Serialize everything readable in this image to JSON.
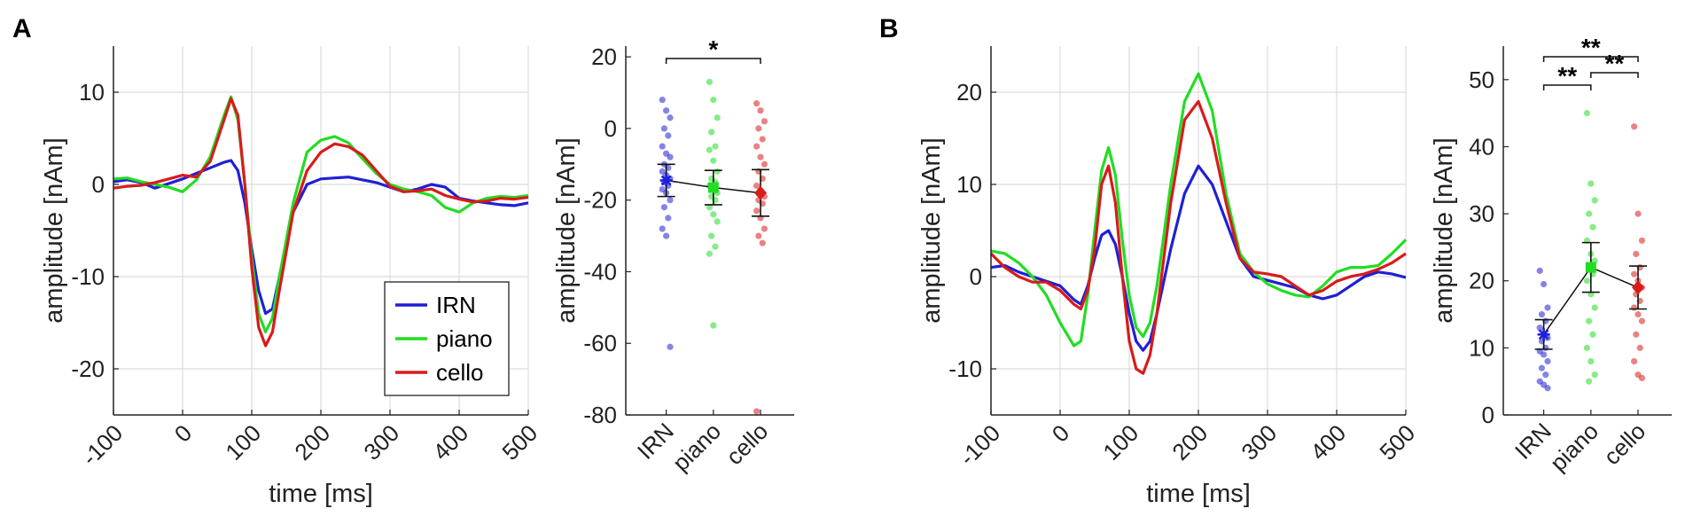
{
  "panels": [
    "A",
    "B"
  ],
  "colors": {
    "IRN": "#1f1fd6",
    "piano": "#22dd22",
    "cello": "#d81b1b"
  },
  "chart_data": [
    {
      "id": "A_wave",
      "type": "line",
      "panel": "A",
      "xlabel": "time [ms]",
      "ylabel": "amplitude [nAm]",
      "xlim": [
        -100,
        500
      ],
      "ylim": [
        -25,
        15
      ],
      "xticks": [
        "-100",
        "0",
        "100",
        "200",
        "300",
        "400",
        "500"
      ],
      "xtick_values": [
        -100,
        0,
        100,
        200,
        300,
        400,
        500
      ],
      "yticks": [
        "10",
        "0",
        "-10",
        "-20"
      ],
      "ytick_values": [
        10,
        0,
        -10,
        -20
      ],
      "legend": [
        "IRN",
        "piano",
        "cello"
      ],
      "legend_position": "bottom-right",
      "series": [
        {
          "name": "IRN",
          "x": [
            -100,
            -80,
            -60,
            -40,
            -20,
            0,
            20,
            40,
            60,
            70,
            80,
            90,
            100,
            110,
            120,
            130,
            140,
            160,
            180,
            200,
            220,
            240,
            260,
            280,
            300,
            320,
            340,
            360,
            380,
            400,
            420,
            440,
            460,
            480,
            500
          ],
          "y": [
            0.3,
            0.5,
            0.2,
            -0.4,
            0.1,
            0.6,
            1.2,
            1.8,
            2.4,
            2.6,
            1.5,
            -2.0,
            -7.0,
            -11.5,
            -14.0,
            -13.5,
            -10.0,
            -3.0,
            0.0,
            0.6,
            0.7,
            0.8,
            0.5,
            0.2,
            -0.3,
            -0.8,
            -0.5,
            0.0,
            -0.3,
            -1.5,
            -1.8,
            -2.0,
            -2.2,
            -2.3,
            -2.0
          ]
        },
        {
          "name": "piano",
          "x": [
            -100,
            -80,
            -60,
            -40,
            -20,
            0,
            20,
            40,
            60,
            70,
            80,
            90,
            100,
            110,
            120,
            130,
            140,
            160,
            180,
            200,
            220,
            240,
            260,
            280,
            300,
            320,
            340,
            360,
            380,
            400,
            420,
            440,
            460,
            480,
            500
          ],
          "y": [
            0.6,
            0.7,
            0.3,
            0.0,
            -0.3,
            -0.8,
            0.5,
            3.0,
            7.5,
            9.5,
            7.0,
            0.0,
            -8.0,
            -14.0,
            -16.0,
            -14.5,
            -10.0,
            -2.0,
            3.5,
            4.8,
            5.2,
            4.5,
            2.8,
            1.2,
            0.0,
            -0.5,
            -0.8,
            -1.2,
            -2.5,
            -3.0,
            -2.0,
            -1.5,
            -1.3,
            -1.4,
            -1.2
          ]
        },
        {
          "name": "cello",
          "x": [
            -100,
            -80,
            -60,
            -40,
            -20,
            0,
            20,
            40,
            60,
            70,
            80,
            90,
            100,
            110,
            120,
            130,
            140,
            160,
            180,
            200,
            220,
            240,
            260,
            280,
            300,
            320,
            340,
            360,
            380,
            400,
            420,
            440,
            460,
            480,
            500
          ],
          "y": [
            -0.4,
            -0.2,
            -0.1,
            0.2,
            0.6,
            1.0,
            0.8,
            2.5,
            7.0,
            9.3,
            7.5,
            0.0,
            -9.0,
            -15.5,
            -17.5,
            -16.0,
            -11.5,
            -3.0,
            1.5,
            3.5,
            4.4,
            4.1,
            3.2,
            1.5,
            -0.2,
            -0.8,
            -0.7,
            -0.5,
            -1.2,
            -1.6,
            -1.9,
            -1.8,
            -1.5,
            -1.6,
            -1.4
          ]
        }
      ]
    },
    {
      "id": "A_dots",
      "type": "scatter",
      "panel": "A",
      "ylabel": "amplitude [nAm]",
      "ylim": [
        -80,
        23
      ],
      "categories": [
        "IRN",
        "piano",
        "cello"
      ],
      "yticks": [
        "20",
        "0",
        "-20",
        "-40",
        "-60",
        "-80"
      ],
      "ytick_values": [
        20,
        0,
        -20,
        -40,
        -60,
        -80
      ],
      "means": [
        -14.5,
        -16.5,
        -18.0
      ],
      "errors": [
        4.5,
        4.8,
        6.5
      ],
      "markers": [
        "*",
        "square",
        "diamond"
      ],
      "points": {
        "IRN": [
          8,
          5,
          3,
          0,
          -2,
          -5,
          -7,
          -8,
          -10,
          -11,
          -12,
          -13,
          -14,
          -15,
          -16,
          -17,
          -18,
          -20,
          -22,
          -25,
          -28,
          -30,
          -61
        ],
        "piano": [
          13,
          8,
          3,
          -1,
          -5,
          -6,
          -9,
          -12,
          -14,
          -15,
          -16,
          -17,
          -18,
          -19,
          -20,
          -22,
          -24,
          -26,
          -30,
          -33,
          -35,
          -55
        ],
        "cello": [
          7,
          5,
          2,
          0,
          -3,
          -5,
          -8,
          -10,
          -12,
          -14,
          -16,
          -18,
          -19,
          -20,
          -21,
          -23,
          -25,
          -28,
          -30,
          -32,
          -79
        ]
      },
      "significance": [
        {
          "pair": [
            "IRN",
            "cello"
          ],
          "label": "*"
        }
      ]
    },
    {
      "id": "B_wave",
      "type": "line",
      "panel": "B",
      "xlabel": "time [ms]",
      "ylabel": "amplitude [nAm]",
      "xlim": [
        -100,
        500
      ],
      "ylim": [
        -15,
        25
      ],
      "xticks": [
        "-100",
        "0",
        "100",
        "200",
        "300",
        "400",
        "500"
      ],
      "xtick_values": [
        -100,
        0,
        100,
        200,
        300,
        400,
        500
      ],
      "yticks": [
        "20",
        "10",
        "0",
        "-10"
      ],
      "ytick_values": [
        20,
        10,
        0,
        -10
      ],
      "series": [
        {
          "name": "IRN",
          "x": [
            -100,
            -80,
            -60,
            -40,
            -20,
            0,
            20,
            30,
            40,
            50,
            60,
            70,
            80,
            90,
            100,
            110,
            120,
            130,
            140,
            160,
            180,
            200,
            220,
            240,
            260,
            280,
            300,
            320,
            340,
            360,
            380,
            400,
            420,
            440,
            460,
            480,
            500
          ],
          "y": [
            1.0,
            1.2,
            0.5,
            0.0,
            -0.5,
            -1.0,
            -2.5,
            -3.0,
            -1.0,
            2.0,
            4.5,
            5.0,
            3.5,
            0.0,
            -4.0,
            -7.0,
            -8.0,
            -7.0,
            -4.0,
            3.0,
            9.0,
            12.0,
            10.0,
            6.0,
            2.0,
            0.0,
            -0.4,
            -0.8,
            -1.2,
            -2.0,
            -2.4,
            -2.0,
            -1.0,
            0.0,
            0.5,
            0.3,
            -0.1
          ]
        },
        {
          "name": "piano",
          "x": [
            -100,
            -80,
            -60,
            -40,
            -20,
            0,
            20,
            30,
            40,
            50,
            60,
            70,
            80,
            90,
            100,
            110,
            120,
            130,
            140,
            160,
            180,
            200,
            220,
            240,
            260,
            280,
            300,
            320,
            340,
            360,
            380,
            400,
            420,
            440,
            460,
            480,
            500
          ],
          "y": [
            2.8,
            2.5,
            1.5,
            0.0,
            -2.0,
            -5.0,
            -7.5,
            -7.0,
            -2.0,
            5.0,
            11.5,
            14.0,
            11.0,
            4.0,
            -2.0,
            -5.5,
            -6.5,
            -5.0,
            -1.0,
            10.0,
            19.0,
            22.0,
            18.0,
            9.0,
            2.5,
            0.5,
            -0.8,
            -1.5,
            -2.0,
            -2.2,
            -1.0,
            0.5,
            1.0,
            1.0,
            1.2,
            2.5,
            4.0
          ]
        },
        {
          "name": "cello",
          "x": [
            -100,
            -80,
            -60,
            -40,
            -20,
            0,
            20,
            30,
            40,
            50,
            60,
            70,
            80,
            90,
            100,
            110,
            120,
            130,
            140,
            160,
            180,
            200,
            220,
            240,
            260,
            280,
            300,
            320,
            340,
            360,
            380,
            400,
            420,
            440,
            460,
            480,
            500
          ],
          "y": [
            2.5,
            1.0,
            0.0,
            -0.6,
            -0.6,
            -1.5,
            -3.0,
            -3.5,
            -1.5,
            3.0,
            10.0,
            12.0,
            8.0,
            0.0,
            -7.0,
            -10.0,
            -10.5,
            -8.5,
            -4.0,
            8.0,
            17.0,
            19.0,
            15.0,
            8.0,
            2.0,
            0.5,
            0.3,
            0.0,
            -1.0,
            -2.0,
            -1.5,
            -0.5,
            0.0,
            0.3,
            0.8,
            1.5,
            2.5
          ]
        }
      ]
    },
    {
      "id": "B_dots",
      "type": "scatter",
      "panel": "B",
      "ylabel": "amplitude [nAm]",
      "ylim": [
        0,
        55
      ],
      "categories": [
        "IRN",
        "piano",
        "cello"
      ],
      "yticks": [
        "50",
        "40",
        "30",
        "20",
        "10",
        "0"
      ],
      "ytick_values": [
        50,
        40,
        30,
        20,
        10,
        0
      ],
      "means": [
        12.0,
        22.0,
        19.0
      ],
      "errors": [
        2.2,
        3.7,
        3.2
      ],
      "markers": [
        "*",
        "square",
        "diamond"
      ],
      "points": {
        "IRN": [
          21.5,
          19.5,
          16,
          15,
          14,
          13,
          12,
          11.5,
          11,
          10,
          9.5,
          9,
          8,
          7,
          6,
          5,
          4.5,
          4
        ],
        "piano": [
          45,
          34.5,
          32,
          30,
          28,
          26,
          24,
          23,
          22,
          21,
          20,
          18,
          16,
          14,
          12,
          10,
          8,
          6,
          5
        ],
        "cello": [
          43,
          30,
          26,
          24,
          22,
          21,
          20,
          19,
          18,
          17,
          16,
          15,
          14,
          12,
          10,
          8,
          6,
          5.5
        ]
      },
      "significance": [
        {
          "pair": [
            "IRN",
            "piano"
          ],
          "label": "**"
        },
        {
          "pair": [
            "IRN",
            "cello"
          ],
          "label": "**"
        },
        {
          "pair": [
            "piano",
            "cello"
          ],
          "label": "**"
        }
      ]
    }
  ]
}
